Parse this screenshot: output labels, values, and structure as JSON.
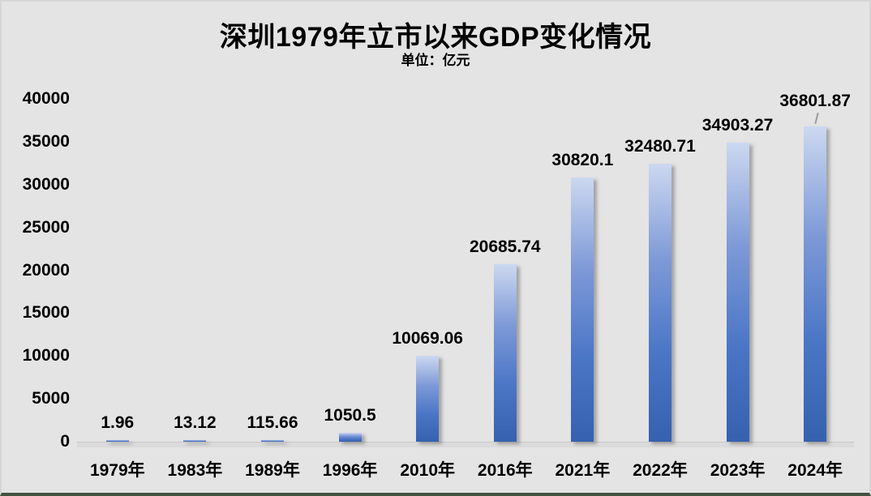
{
  "chart_data": {
    "type": "bar",
    "title": "深圳1979年立市以来GDP变化情况",
    "subtitle": "单位：亿元",
    "unit": "亿元",
    "categories": [
      "1979年",
      "1983年",
      "1989年",
      "1996年",
      "2010年",
      "2016年",
      "2021年",
      "2022年",
      "2023年",
      "2024年"
    ],
    "values": [
      1.96,
      13.12,
      115.66,
      1050.5,
      10069.06,
      20685.74,
      30820.1,
      32480.71,
      34903.27,
      36801.87
    ],
    "value_labels": [
      "1.96",
      "13.12",
      "115.66",
      "1050.5",
      "10069.06",
      "20685.74",
      "30820.1",
      "32480.71",
      "34903.27",
      "36801.87"
    ],
    "ylim": [
      0,
      40000
    ],
    "yticks": [
      0,
      5000,
      10000,
      15000,
      20000,
      25000,
      30000,
      35000,
      40000
    ],
    "grid": false,
    "legend": null,
    "leader_line_category": "2024年",
    "colors": {
      "background": "#e5e4e4",
      "frame_border": "#d7d6d6",
      "bottom_bar": "#41543f",
      "text": "#000000",
      "axis_line": "#c9c8c8",
      "bar_gradient": [
        "#ccd8f0",
        "#7d99d7",
        "#4b76c6",
        "#3561af"
      ],
      "shadow": "#6e6e6e"
    }
  }
}
